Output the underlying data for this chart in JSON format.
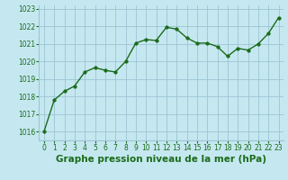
{
  "x": [
    0,
    1,
    2,
    3,
    4,
    5,
    6,
    7,
    8,
    9,
    10,
    11,
    12,
    13,
    14,
    15,
    16,
    17,
    18,
    19,
    20,
    21,
    22,
    23
  ],
  "y": [
    1016.0,
    1017.8,
    1018.3,
    1018.6,
    1019.4,
    1019.65,
    1019.5,
    1019.4,
    1020.0,
    1021.05,
    1021.25,
    1021.2,
    1021.95,
    1021.85,
    1021.35,
    1021.05,
    1021.05,
    1020.85,
    1020.3,
    1020.75,
    1020.65,
    1021.0,
    1021.6,
    1022.5
  ],
  "line_color": "#1a6b1a",
  "marker_color": "#1a6b1a",
  "bg_color": "#c5e8f0",
  "grid_color": "#9cc4d4",
  "xlabel": "Graphe pression niveau de la mer (hPa)",
  "xlabel_color": "#1a6b1a",
  "ylim_min": 1015.5,
  "ylim_max": 1023.2,
  "yticks": [
    1016,
    1017,
    1018,
    1019,
    1020,
    1021,
    1022,
    1023
  ],
  "xticks": [
    0,
    1,
    2,
    3,
    4,
    5,
    6,
    7,
    8,
    9,
    10,
    11,
    12,
    13,
    14,
    15,
    16,
    17,
    18,
    19,
    20,
    21,
    22,
    23
  ],
  "tick_label_color": "#1a6b1a",
  "tick_label_size": 5.5,
  "xlabel_size": 7.5,
  "marker_size": 2.5,
  "line_width": 1.0
}
